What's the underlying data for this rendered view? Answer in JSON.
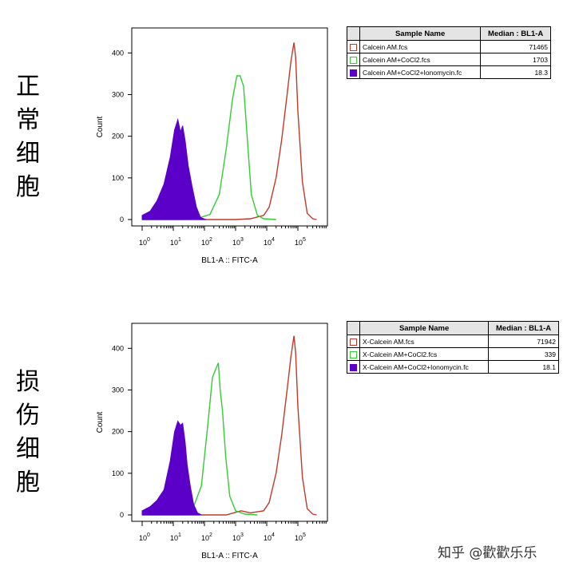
{
  "side_labels": {
    "top": "正\n常\n细\n胞",
    "bottom": "损\n伤\n细\n胞"
  },
  "legend_headers": {
    "sample": "Sample Name",
    "median": "Median : BL1-A"
  },
  "watermark": "知乎 @歡歡乐乐",
  "colors": {
    "calcein_am": "#c0392b",
    "cocl2": "#33cc33",
    "ionomycin": "#5b00c8"
  },
  "chart_data": [
    {
      "type": "area",
      "scale_x": "log",
      "xlabel": "BL1-A :: FITC-A",
      "ylabel": "Count",
      "ylim": [
        0,
        460
      ],
      "y_ticks": [
        0,
        100,
        200,
        300,
        400
      ],
      "x_ticks": [
        "10^0",
        "10^1",
        "10^2",
        "10^3",
        "10^4",
        "10^5"
      ],
      "legend": [
        {
          "name": "Calcein AM.fcs",
          "median": "71465"
        },
        {
          "name": "Calcein AM+CoCl2.fcs",
          "median": "1703"
        },
        {
          "name": "Calcein AM+CoCl2+Ionomycin.fc",
          "median": "18.3"
        }
      ],
      "series": [
        {
          "name": "Calcein AM.fcs",
          "style": "line",
          "x": [
            1,
            1000,
            3000,
            8000,
            12000,
            20000,
            30000,
            45000,
            60000,
            75000,
            85000,
            100000,
            140000,
            200000,
            300000,
            400000
          ],
          "y": [
            0,
            0,
            2,
            10,
            30,
            100,
            190,
            300,
            380,
            425,
            390,
            260,
            90,
            15,
            2,
            0
          ]
        },
        {
          "name": "Calcein AM+CoCl2.fcs",
          "style": "line",
          "x": [
            1,
            20,
            60,
            150,
            300,
            500,
            800,
            1100,
            1400,
            1800,
            2300,
            3200,
            5000,
            8000,
            20000
          ],
          "y": [
            0,
            0,
            3,
            12,
            60,
            170,
            290,
            345,
            345,
            320,
            210,
            60,
            10,
            2,
            0
          ]
        },
        {
          "name": "Calcein AM+CoCl2+Ionomycin.fc",
          "style": "filled",
          "x": [
            1,
            1.8,
            3,
            5,
            8,
            11,
            14,
            17,
            20,
            24,
            30,
            40,
            55,
            75,
            110
          ],
          "y": [
            10,
            20,
            45,
            85,
            150,
            215,
            240,
            210,
            225,
            190,
            130,
            80,
            30,
            5,
            0
          ]
        }
      ]
    },
    {
      "type": "area",
      "scale_x": "log",
      "xlabel": "BL1-A :: FITC-A",
      "ylabel": "Count",
      "ylim": [
        0,
        460
      ],
      "y_ticks": [
        0,
        100,
        200,
        300,
        400
      ],
      "x_ticks": [
        "10^0",
        "10^1",
        "10^2",
        "10^3",
        "10^4",
        "10^5"
      ],
      "legend": [
        {
          "name": "X-Calcein AM.fcs",
          "median": "71942"
        },
        {
          "name": "X-Calcein AM+CoCl2.fcs",
          "median": "339"
        },
        {
          "name": "X-Calcein AM+CoCl2+Ionomycin.fc",
          "median": "18.1"
        }
      ],
      "series": [
        {
          "name": "X-Calcein AM.fcs",
          "style": "line",
          "x": [
            1,
            500,
            1500,
            3000,
            8000,
            12000,
            20000,
            30000,
            45000,
            60000,
            75000,
            85000,
            100000,
            140000,
            200000,
            300000,
            400000
          ],
          "y": [
            0,
            0,
            10,
            5,
            10,
            30,
            100,
            190,
            300,
            380,
            430,
            390,
            260,
            90,
            15,
            2,
            0
          ]
        },
        {
          "name": "X-Calcein AM+CoCl2.fcs",
          "style": "line",
          "x": [
            1,
            15,
            40,
            80,
            130,
            180,
            230,
            280,
            320,
            380,
            480,
            650,
            1000,
            2000,
            5000
          ],
          "y": [
            0,
            0,
            10,
            70,
            220,
            330,
            350,
            365,
            300,
            250,
            140,
            45,
            10,
            2,
            0
          ]
        },
        {
          "name": "X-Calcein AM+CoCl2+Ionomycin.fc",
          "style": "filled",
          "x": [
            1,
            1.8,
            3,
            5,
            8,
            11,
            14,
            17,
            20,
            24,
            28,
            35,
            45,
            60,
            80
          ],
          "y": [
            10,
            20,
            35,
            60,
            130,
            200,
            225,
            215,
            220,
            175,
            120,
            70,
            25,
            5,
            0
          ]
        }
      ]
    }
  ]
}
